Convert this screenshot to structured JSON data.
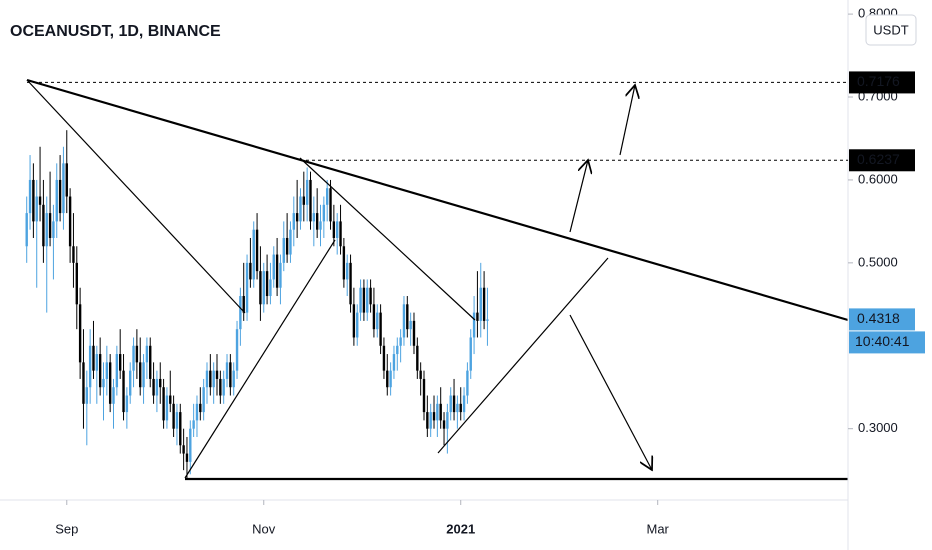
{
  "chart_data": {
    "type": "candlestick",
    "title": "OCEANUSDT, 1D, BINANCE",
    "currency": "USDT",
    "up_color": "#4da3e0",
    "down_color": "#000000",
    "ylim": [
      0.214,
      0.817
    ],
    "yticks": [
      {
        "value": 0.8,
        "label": "0.8000"
      },
      {
        "value": 0.7,
        "label": "0.7000"
      },
      {
        "value": 0.6,
        "label": "0.6000"
      },
      {
        "value": 0.5,
        "label": "0.5000"
      },
      {
        "value": 0.3,
        "label": "0.3000"
      }
    ],
    "xlim": [
      -8,
      246
    ],
    "xticks": [
      {
        "value": 12,
        "label": "Sep"
      },
      {
        "value": 71,
        "label": "Nov"
      },
      {
        "value": 130,
        "label": "2021"
      },
      {
        "value": 189,
        "label": "Mar"
      }
    ],
    "price_labels": [
      {
        "value": 0.7176,
        "color": "#000000"
      },
      {
        "value": 0.6237,
        "color": "#000000"
      },
      {
        "value": 0.4318,
        "color": "#4da3e0"
      }
    ],
    "countdown": "10:40:41",
    "ohlc": [
      [
        0.52,
        0.58,
        0.5,
        0.56
      ],
      [
        0.56,
        0.63,
        0.54,
        0.6
      ],
      [
        0.6,
        0.62,
        0.53,
        0.55
      ],
      [
        0.55,
        0.6,
        0.47,
        0.58
      ],
      [
        0.58,
        0.64,
        0.55,
        0.57
      ],
      [
        0.57,
        0.6,
        0.5,
        0.52
      ],
      [
        0.52,
        0.58,
        0.44,
        0.56
      ],
      [
        0.56,
        0.61,
        0.52,
        0.53
      ],
      [
        0.53,
        0.57,
        0.48,
        0.55
      ],
      [
        0.55,
        0.62,
        0.53,
        0.6
      ],
      [
        0.6,
        0.63,
        0.55,
        0.56
      ],
      [
        0.56,
        0.64,
        0.54,
        0.62
      ],
      [
        0.62,
        0.66,
        0.56,
        0.58
      ],
      [
        0.58,
        0.59,
        0.5,
        0.52
      ],
      [
        0.52,
        0.56,
        0.47,
        0.5
      ],
      [
        0.5,
        0.52,
        0.42,
        0.45
      ],
      [
        0.45,
        0.47,
        0.36,
        0.38
      ],
      [
        0.38,
        0.42,
        0.3,
        0.33
      ],
      [
        0.33,
        0.37,
        0.28,
        0.35
      ],
      [
        0.35,
        0.42,
        0.33,
        0.4
      ],
      [
        0.4,
        0.43,
        0.36,
        0.37
      ],
      [
        0.37,
        0.4,
        0.33,
        0.39
      ],
      [
        0.39,
        0.41,
        0.34,
        0.35
      ],
      [
        0.35,
        0.38,
        0.31,
        0.36
      ],
      [
        0.36,
        0.4,
        0.34,
        0.38
      ],
      [
        0.38,
        0.39,
        0.32,
        0.33
      ],
      [
        0.33,
        0.36,
        0.3,
        0.35
      ],
      [
        0.35,
        0.4,
        0.34,
        0.39
      ],
      [
        0.39,
        0.42,
        0.36,
        0.37
      ],
      [
        0.37,
        0.39,
        0.31,
        0.32
      ],
      [
        0.32,
        0.35,
        0.3,
        0.34
      ],
      [
        0.34,
        0.38,
        0.33,
        0.37
      ],
      [
        0.37,
        0.41,
        0.35,
        0.4
      ],
      [
        0.4,
        0.42,
        0.36,
        0.38
      ],
      [
        0.38,
        0.41,
        0.34,
        0.35
      ],
      [
        0.35,
        0.39,
        0.33,
        0.38
      ],
      [
        0.38,
        0.41,
        0.36,
        0.4
      ],
      [
        0.4,
        0.41,
        0.35,
        0.36
      ],
      [
        0.36,
        0.38,
        0.33,
        0.34
      ],
      [
        0.34,
        0.37,
        0.32,
        0.36
      ],
      [
        0.36,
        0.38,
        0.33,
        0.35
      ],
      [
        0.35,
        0.36,
        0.3,
        0.31
      ],
      [
        0.31,
        0.35,
        0.3,
        0.34
      ],
      [
        0.34,
        0.37,
        0.32,
        0.33
      ],
      [
        0.33,
        0.34,
        0.29,
        0.3
      ],
      [
        0.3,
        0.33,
        0.28,
        0.32
      ],
      [
        0.32,
        0.33,
        0.27,
        0.28
      ],
      [
        0.28,
        0.3,
        0.25,
        0.27
      ],
      [
        0.27,
        0.29,
        0.24,
        0.26
      ],
      [
        0.26,
        0.31,
        0.245,
        0.3
      ],
      [
        0.3,
        0.33,
        0.29,
        0.31
      ],
      [
        0.31,
        0.34,
        0.29,
        0.33
      ],
      [
        0.33,
        0.35,
        0.31,
        0.32
      ],
      [
        0.32,
        0.36,
        0.31,
        0.35
      ],
      [
        0.35,
        0.38,
        0.33,
        0.37
      ],
      [
        0.37,
        0.39,
        0.34,
        0.35
      ],
      [
        0.35,
        0.38,
        0.33,
        0.37
      ],
      [
        0.37,
        0.39,
        0.34,
        0.36
      ],
      [
        0.36,
        0.37,
        0.33,
        0.34
      ],
      [
        0.34,
        0.37,
        0.33,
        0.36
      ],
      [
        0.36,
        0.39,
        0.35,
        0.38
      ],
      [
        0.38,
        0.39,
        0.34,
        0.35
      ],
      [
        0.35,
        0.38,
        0.34,
        0.37
      ],
      [
        0.37,
        0.43,
        0.36,
        0.42
      ],
      [
        0.42,
        0.47,
        0.4,
        0.46
      ],
      [
        0.46,
        0.5,
        0.43,
        0.44
      ],
      [
        0.44,
        0.51,
        0.43,
        0.5
      ],
      [
        0.5,
        0.53,
        0.47,
        0.48
      ],
      [
        0.48,
        0.55,
        0.47,
        0.54
      ],
      [
        0.54,
        0.56,
        0.48,
        0.49
      ],
      [
        0.49,
        0.52,
        0.43,
        0.45
      ],
      [
        0.45,
        0.5,
        0.44,
        0.49
      ],
      [
        0.49,
        0.51,
        0.45,
        0.46
      ],
      [
        0.46,
        0.5,
        0.45,
        0.48
      ],
      [
        0.48,
        0.52,
        0.47,
        0.51
      ],
      [
        0.51,
        0.53,
        0.46,
        0.47
      ],
      [
        0.47,
        0.51,
        0.45,
        0.5
      ],
      [
        0.5,
        0.55,
        0.49,
        0.53
      ],
      [
        0.53,
        0.56,
        0.5,
        0.51
      ],
      [
        0.51,
        0.55,
        0.5,
        0.54
      ],
      [
        0.54,
        0.58,
        0.52,
        0.56
      ],
      [
        0.56,
        0.6,
        0.53,
        0.55
      ],
      [
        0.55,
        0.59,
        0.54,
        0.58
      ],
      [
        0.58,
        0.61,
        0.55,
        0.57
      ],
      [
        0.57,
        0.615,
        0.55,
        0.6
      ],
      [
        0.6,
        0.61,
        0.54,
        0.55
      ],
      [
        0.55,
        0.58,
        0.52,
        0.56
      ],
      [
        0.56,
        0.59,
        0.53,
        0.54
      ],
      [
        0.54,
        0.57,
        0.52,
        0.55
      ],
      [
        0.55,
        0.58,
        0.53,
        0.57
      ],
      [
        0.57,
        0.6,
        0.55,
        0.59
      ],
      [
        0.59,
        0.6,
        0.54,
        0.55
      ],
      [
        0.55,
        0.57,
        0.52,
        0.53
      ],
      [
        0.53,
        0.56,
        0.51,
        0.55
      ],
      [
        0.55,
        0.57,
        0.51,
        0.52
      ],
      [
        0.52,
        0.53,
        0.47,
        0.48
      ],
      [
        0.48,
        0.51,
        0.46,
        0.5
      ],
      [
        0.5,
        0.51,
        0.44,
        0.45
      ],
      [
        0.45,
        0.47,
        0.4,
        0.41
      ],
      [
        0.41,
        0.45,
        0.4,
        0.44
      ],
      [
        0.44,
        0.48,
        0.43,
        0.47
      ],
      [
        0.47,
        0.48,
        0.43,
        0.44
      ],
      [
        0.44,
        0.48,
        0.43,
        0.47
      ],
      [
        0.47,
        0.48,
        0.44,
        0.45
      ],
      [
        0.45,
        0.47,
        0.41,
        0.42
      ],
      [
        0.42,
        0.45,
        0.41,
        0.44
      ],
      [
        0.44,
        0.45,
        0.39,
        0.4
      ],
      [
        0.4,
        0.41,
        0.36,
        0.37
      ],
      [
        0.37,
        0.39,
        0.34,
        0.35
      ],
      [
        0.35,
        0.38,
        0.34,
        0.37
      ],
      [
        0.37,
        0.4,
        0.36,
        0.39
      ],
      [
        0.39,
        0.41,
        0.37,
        0.4
      ],
      [
        0.4,
        0.42,
        0.38,
        0.41
      ],
      [
        0.41,
        0.46,
        0.4,
        0.45
      ],
      [
        0.45,
        0.46,
        0.41,
        0.42
      ],
      [
        0.42,
        0.44,
        0.4,
        0.43
      ],
      [
        0.43,
        0.44,
        0.39,
        0.4
      ],
      [
        0.4,
        0.41,
        0.36,
        0.37
      ],
      [
        0.37,
        0.38,
        0.34,
        0.36
      ],
      [
        0.36,
        0.37,
        0.31,
        0.32
      ],
      [
        0.32,
        0.34,
        0.29,
        0.3
      ],
      [
        0.3,
        0.33,
        0.29,
        0.32
      ],
      [
        0.32,
        0.34,
        0.3,
        0.31
      ],
      [
        0.31,
        0.34,
        0.29,
        0.33
      ],
      [
        0.33,
        0.35,
        0.3,
        0.31
      ],
      [
        0.31,
        0.32,
        0.28,
        0.3
      ],
      [
        0.3,
        0.33,
        0.27,
        0.32
      ],
      [
        0.32,
        0.35,
        0.31,
        0.34
      ],
      [
        0.34,
        0.36,
        0.31,
        0.32
      ],
      [
        0.32,
        0.34,
        0.3,
        0.33
      ],
      [
        0.33,
        0.35,
        0.31,
        0.32
      ],
      [
        0.32,
        0.35,
        0.31,
        0.34
      ],
      [
        0.34,
        0.38,
        0.33,
        0.37
      ],
      [
        0.37,
        0.42,
        0.36,
        0.41
      ],
      [
        0.41,
        0.46,
        0.39,
        0.44
      ],
      [
        0.44,
        0.49,
        0.41,
        0.43
      ],
      [
        0.43,
        0.5,
        0.41,
        0.47
      ],
      [
        0.47,
        0.49,
        0.42,
        0.43
      ],
      [
        0.43,
        0.47,
        0.4,
        0.4318
      ]
    ]
  }
}
